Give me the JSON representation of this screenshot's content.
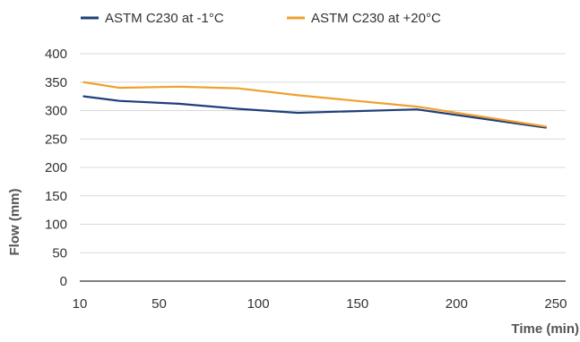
{
  "chart_data": {
    "type": "line",
    "title": "",
    "xlabel": "Time (min)",
    "ylabel": "Flow (mm)",
    "x_ticks": [
      "10",
      "50",
      "100",
      "150",
      "200",
      "250"
    ],
    "x_tick_values": [
      10,
      50,
      100,
      150,
      200,
      250
    ],
    "y_ticks": [
      "0",
      "50",
      "100",
      "150",
      "200",
      "250",
      "300",
      "350",
      "400"
    ],
    "y_tick_values": [
      0,
      50,
      100,
      150,
      200,
      250,
      300,
      350,
      400
    ],
    "xlim": [
      10,
      255
    ],
    "ylim": [
      0,
      400
    ],
    "grid": "horizontal",
    "legend_position": "top",
    "series": [
      {
        "name": "ASTM C230 at -1°C",
        "color": "#1f3f7a",
        "x": [
          12,
          30,
          60,
          90,
          120,
          180,
          245
        ],
        "y": [
          325,
          317,
          312,
          303,
          296,
          302,
          270
        ]
      },
      {
        "name": "ASTM C230 at +20°C",
        "color": "#f0a02d",
        "x": [
          12,
          30,
          60,
          90,
          120,
          180,
          245
        ],
        "y": [
          350,
          340,
          342,
          339,
          327,
          307,
          272
        ]
      }
    ]
  },
  "style": {
    "grid_color": "#d9d9d9",
    "axis_color": "#808080",
    "text_color": "#333333"
  }
}
